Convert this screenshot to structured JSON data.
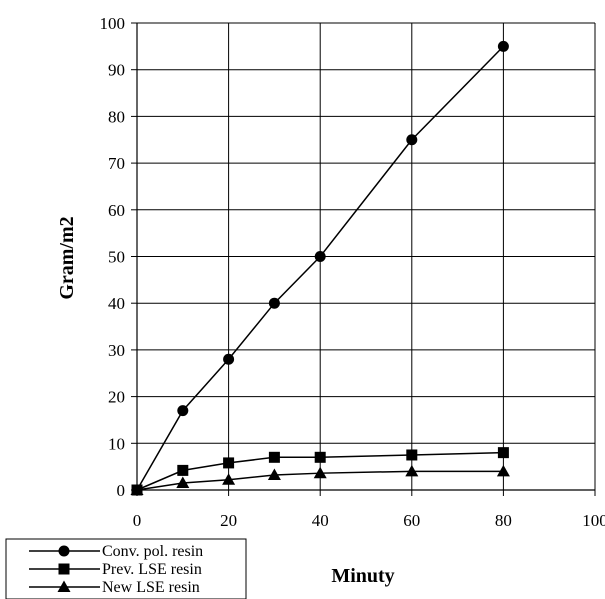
{
  "chart_data": {
    "type": "line",
    "xlabel": "Minuty",
    "ylabel": "Gram/m2",
    "xlim": [
      0,
      100
    ],
    "ylim": [
      0,
      100
    ],
    "xticks": [
      0,
      20,
      40,
      60,
      80,
      100
    ],
    "yticks": [
      0,
      10,
      20,
      30,
      40,
      50,
      60,
      70,
      80,
      90,
      100
    ],
    "grid": true,
    "legend_position": "bottom-left",
    "series": [
      {
        "name": "Conv. pol. resin",
        "marker": "circle",
        "color": "#000000",
        "x": [
          0,
          10,
          20,
          30,
          40,
          60,
          80
        ],
        "y": [
          0,
          17,
          28,
          40,
          50,
          75,
          95
        ]
      },
      {
        "name": "Prev. LSE resin",
        "marker": "square",
        "color": "#000000",
        "x": [
          0,
          10,
          20,
          30,
          40,
          60,
          80
        ],
        "y": [
          0,
          4.2,
          5.8,
          7,
          7,
          7.5,
          8
        ]
      },
      {
        "name": "New LSE resin",
        "marker": "triangle",
        "color": "#000000",
        "x": [
          0,
          10,
          20,
          30,
          40,
          60,
          80
        ],
        "y": [
          0,
          1.5,
          2.2,
          3.2,
          3.6,
          4,
          4
        ]
      }
    ]
  }
}
